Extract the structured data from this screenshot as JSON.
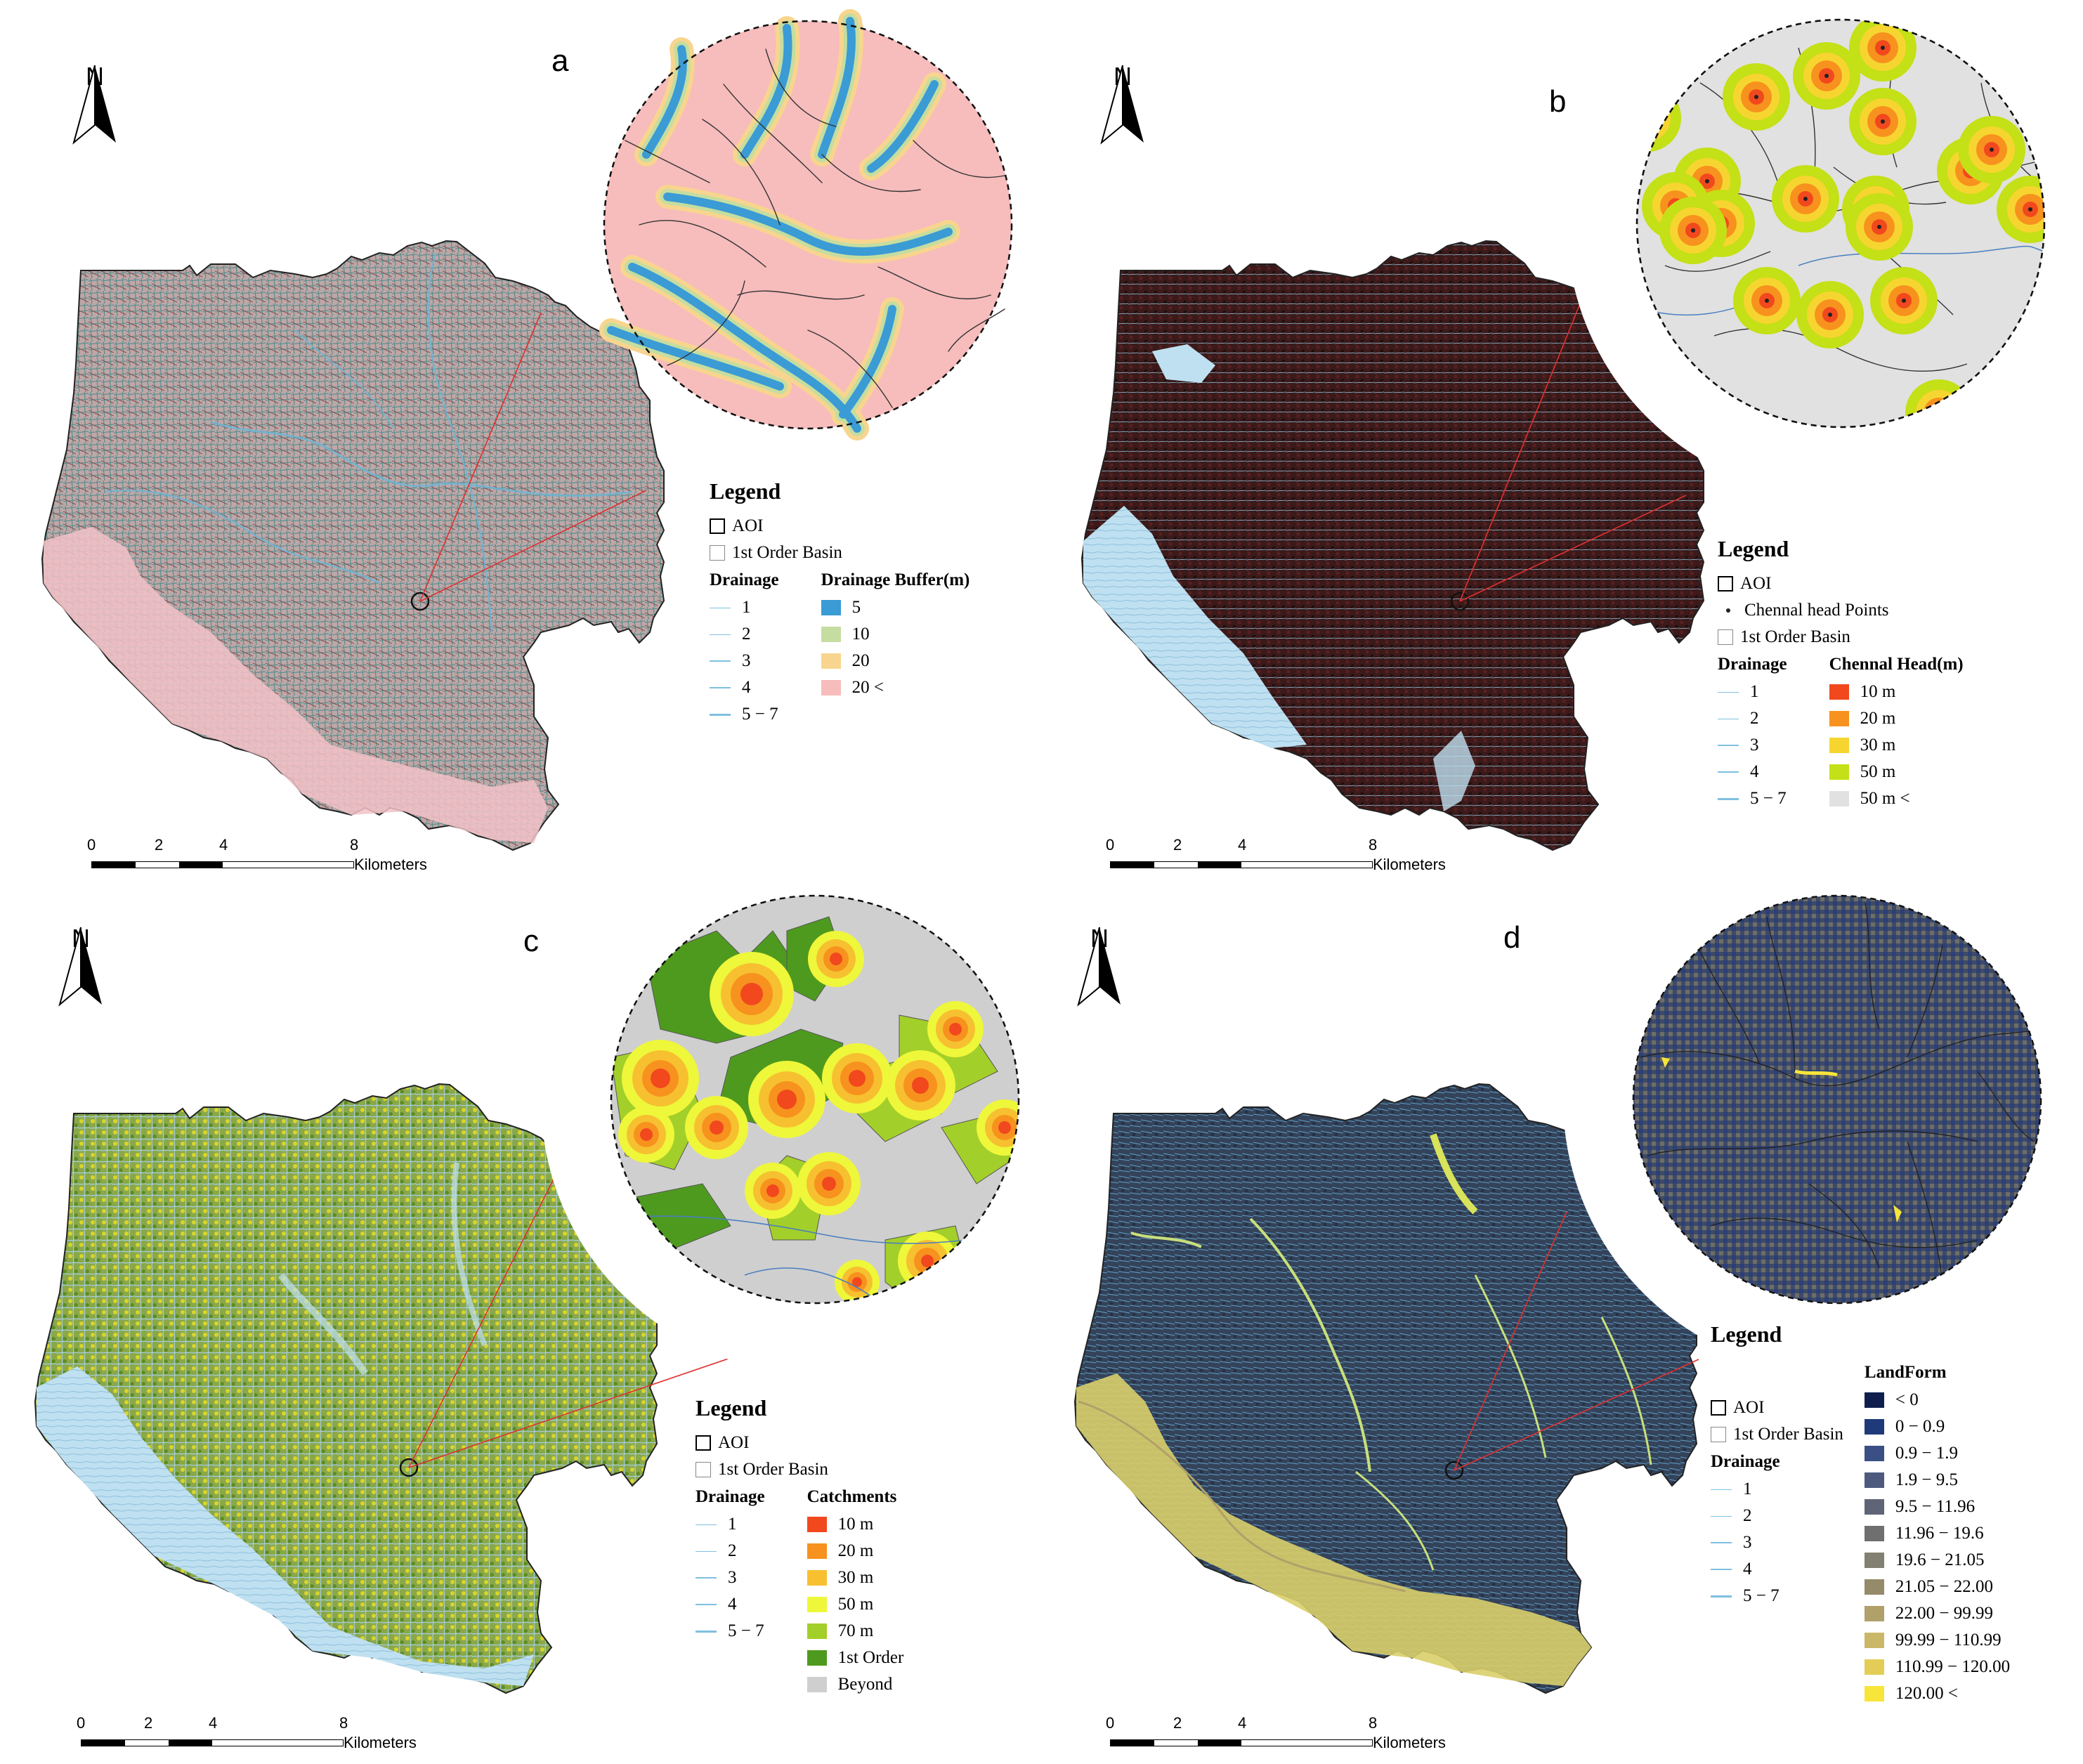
{
  "panels": {
    "a": {
      "label": "a"
    },
    "b": {
      "label": "b"
    },
    "c": {
      "label": "c"
    },
    "d": {
      "label": "d"
    }
  },
  "north_label": "N",
  "scale": {
    "ticks": [
      "0",
      "2",
      "4",
      "8"
    ],
    "unit": "Kilometers"
  },
  "legend_common": {
    "title": "Legend",
    "aoi": "AOI",
    "first_order_basin": "1st Order Basin",
    "drainage_title": "Drainage",
    "drainage_classes": [
      "1",
      "2",
      "3",
      "4",
      "5 − 7"
    ]
  },
  "legend_a": {
    "title": "Drainage Buffer(m)",
    "classes": [
      {
        "label": "5",
        "color": "#3a9bd5"
      },
      {
        "label": "10",
        "color": "#c5dda0"
      },
      {
        "label": "20",
        "color": "#f8d58e"
      },
      {
        "label": "20 <",
        "color": "#f7bcbc"
      }
    ]
  },
  "legend_b": {
    "point_label": "Chennal head Points",
    "title": "Chennal Head(m)",
    "classes": [
      {
        "label": "10 m",
        "color": "#f2481e"
      },
      {
        "label": "20 m",
        "color": "#f7921e"
      },
      {
        "label": "30 m",
        "color": "#f7d530"
      },
      {
        "label": "50 m",
        "color": "#c4e016"
      },
      {
        "label": "50 m <",
        "color": "#e1e1e1"
      }
    ]
  },
  "legend_c": {
    "title": "Catchments",
    "classes": [
      {
        "label": "10 m",
        "color": "#f2481e"
      },
      {
        "label": "20 m",
        "color": "#f7921e"
      },
      {
        "label": "30 m",
        "color": "#f7c030"
      },
      {
        "label": "50 m",
        "color": "#eef73a"
      },
      {
        "label": "70 m",
        "color": "#a3cf2a"
      },
      {
        "label": "1st Order",
        "color": "#4e9a1e"
      },
      {
        "label": "Beyond",
        "color": "#cfcfcf"
      }
    ]
  },
  "legend_d": {
    "title": "LandForm",
    "classes": [
      {
        "label": "< 0",
        "color": "#0e1f4d"
      },
      {
        "label": "0  − 0.9",
        "color": "#1f3a78"
      },
      {
        "label": "0.9  − 1.9",
        "color": "#3a4f84"
      },
      {
        "label": "1.9  − 9.5",
        "color": "#4d5a7d"
      },
      {
        "label": "9.5  − 11.96",
        "color": "#5f6577"
      },
      {
        "label": "11.96  − 19.6",
        "color": "#6f6f70"
      },
      {
        "label": "19.6  − 21.05",
        "color": "#828070"
      },
      {
        "label": "21.05  − 22.00",
        "color": "#958a6a"
      },
      {
        "label": "22.00  − 99.99",
        "color": "#b0a06a"
      },
      {
        "label": "99.99  − 110.99",
        "color": "#cab868"
      },
      {
        "label": "110.99  − 120.00",
        "color": "#e3cd56"
      },
      {
        "label": "120.00 <",
        "color": "#f8e53a"
      }
    ]
  }
}
